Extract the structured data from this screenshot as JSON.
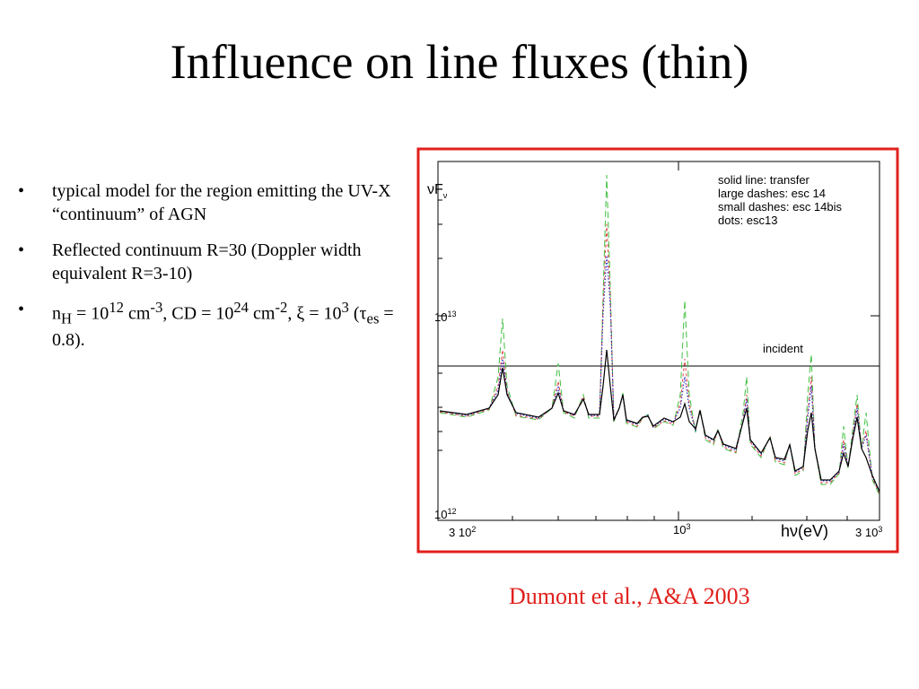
{
  "header": {
    "title": "Influence on line fluxes (thin)"
  },
  "bullets": [
    [
      {
        "text": "typical model for the region emitting the UV-X “continuum” of AGN"
      }
    ],
    [
      {
        "text": "Reflected continuum R=30 (Doppler width equivalent R=3-10)"
      }
    ],
    [
      {
        "text": "n"
      },
      {
        "sub": "H"
      },
      {
        "text": " = 10"
      },
      {
        "sup": "12"
      },
      {
        "text": " cm"
      },
      {
        "sup": "-3"
      },
      {
        "text": ", CD = 10"
      },
      {
        "sup": "24"
      },
      {
        "text": " cm"
      },
      {
        "sup": "-2"
      },
      {
        "text": ", ξ = 10"
      },
      {
        "sup": "3"
      },
      {
        "text": " (τ"
      },
      {
        "sub": "es"
      },
      {
        "text": " = 0.8)."
      }
    ]
  ],
  "figure": {
    "y_label": [
      {
        "text": "νF"
      },
      {
        "sub": "ν"
      }
    ],
    "y_tick_high": [
      {
        "text": "10"
      },
      {
        "sup": "13"
      }
    ],
    "y_tick_low": [
      {
        "text": "10"
      },
      {
        "sup": "12"
      }
    ],
    "x_tick_left": [
      {
        "text": "3 10"
      },
      {
        "sup": "2"
      }
    ],
    "x_tick_mid": [
      {
        "text": "10"
      },
      {
        "sup": "3"
      }
    ],
    "x_tick_right": [
      {
        "text": "3 10"
      },
      {
        "sup": "3"
      }
    ],
    "x_label": "hν(eV)",
    "legend": [
      "solid line: transfer",
      "large dashes: esc 14",
      "small dashes: esc 14bis",
      "dots: esc13"
    ],
    "incident": "incident"
  },
  "citation": "Dumont et al., A&A 2003"
}
